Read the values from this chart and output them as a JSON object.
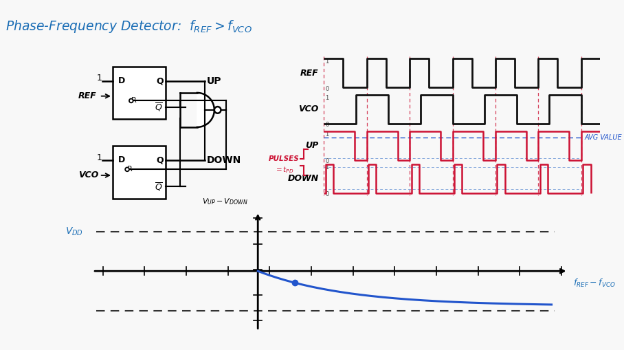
{
  "title": "Phase-Frequency Detector:  ",
  "title_math": "$f_{REF} > f_{VCO}$",
  "title_color": "#1a6db5",
  "bg_color": "#f8f8f8",
  "waveform_colors": {
    "ref_vco": "#111111",
    "up_down": "#cc1133",
    "avg": "#2255cc",
    "dashed_v": "#cc1133"
  },
  "graph_xlabel": "$f_{REF}-f_{VCO}$",
  "graph_ylabel": "$V_{UP}-V_{DOWN}$",
  "graph_vdd_label": "$V_{DD}$",
  "graph_curve_color": "#2255cc",
  "graph_dashed_color": "#333333",
  "pulses_color": "#cc1133",
  "avg_label": "AVG VALUE",
  "avg_label_color": "#2255cc"
}
